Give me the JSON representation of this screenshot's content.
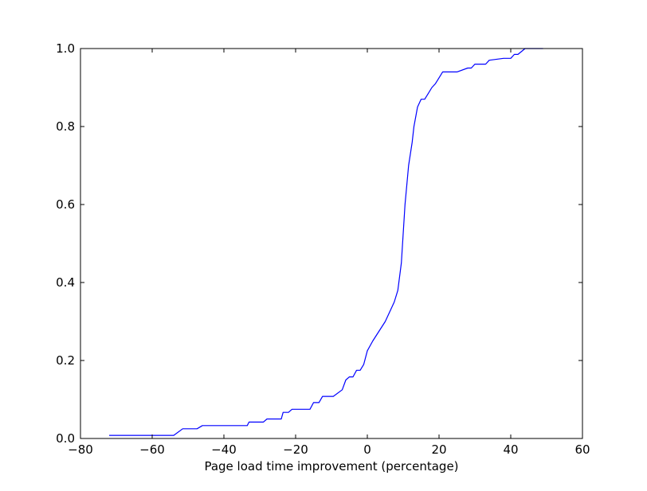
{
  "chart_data": {
    "type": "line",
    "title": "",
    "xlabel": "Page load time improvement (percentage)",
    "ylabel": "",
    "xlim": [
      -80,
      60
    ],
    "ylim": [
      0.0,
      1.0
    ],
    "x_ticks": [
      -80,
      -60,
      -40,
      -20,
      0,
      20,
      40,
      60
    ],
    "x_tick_labels": [
      "−80",
      "−60",
      "−40",
      "−20",
      "0",
      "20",
      "40",
      "60"
    ],
    "y_ticks": [
      0.0,
      0.2,
      0.4,
      0.6,
      0.8,
      1.0
    ],
    "y_tick_labels": [
      "0.0",
      "0.2",
      "0.4",
      "0.6",
      "0.8",
      "1.0"
    ],
    "grid": false,
    "legend": "none",
    "line_color": "#0000ff",
    "series": [
      {
        "x": [
          -72,
          -54,
          -51.5,
          -47.5,
          -46,
          -33.5,
          -33,
          -29,
          -28,
          -24,
          -23.5,
          -22,
          -21,
          -16,
          -15,
          -13.5,
          -12.5,
          -9.5,
          -7,
          -6,
          -5,
          -4,
          -3,
          -2,
          -1,
          0,
          1.5,
          5,
          7.5,
          8.5,
          9.5,
          10.5,
          11.5,
          12.5,
          13,
          14,
          15,
          16,
          17,
          18,
          19,
          20,
          21,
          25,
          28,
          29,
          30,
          31,
          32,
          33,
          34,
          38,
          40,
          41,
          42,
          44,
          45,
          48,
          49
        ],
        "y": [
          0.008,
          0.008,
          0.025,
          0.025,
          0.033,
          0.033,
          0.042,
          0.042,
          0.05,
          0.05,
          0.067,
          0.067,
          0.075,
          0.075,
          0.092,
          0.092,
          0.108,
          0.108,
          0.125,
          0.15,
          0.158,
          0.158,
          0.175,
          0.175,
          0.19,
          0.225,
          0.25,
          0.3,
          0.35,
          0.38,
          0.45,
          0.6,
          0.7,
          0.76,
          0.8,
          0.85,
          0.87,
          0.87,
          0.885,
          0.9,
          0.91,
          0.925,
          0.94,
          0.94,
          0.95,
          0.95,
          0.96,
          0.96,
          0.96,
          0.96,
          0.97,
          0.975,
          0.975,
          0.985,
          0.985,
          1.0,
          1.0,
          1.0,
          1.0
        ]
      }
    ]
  }
}
